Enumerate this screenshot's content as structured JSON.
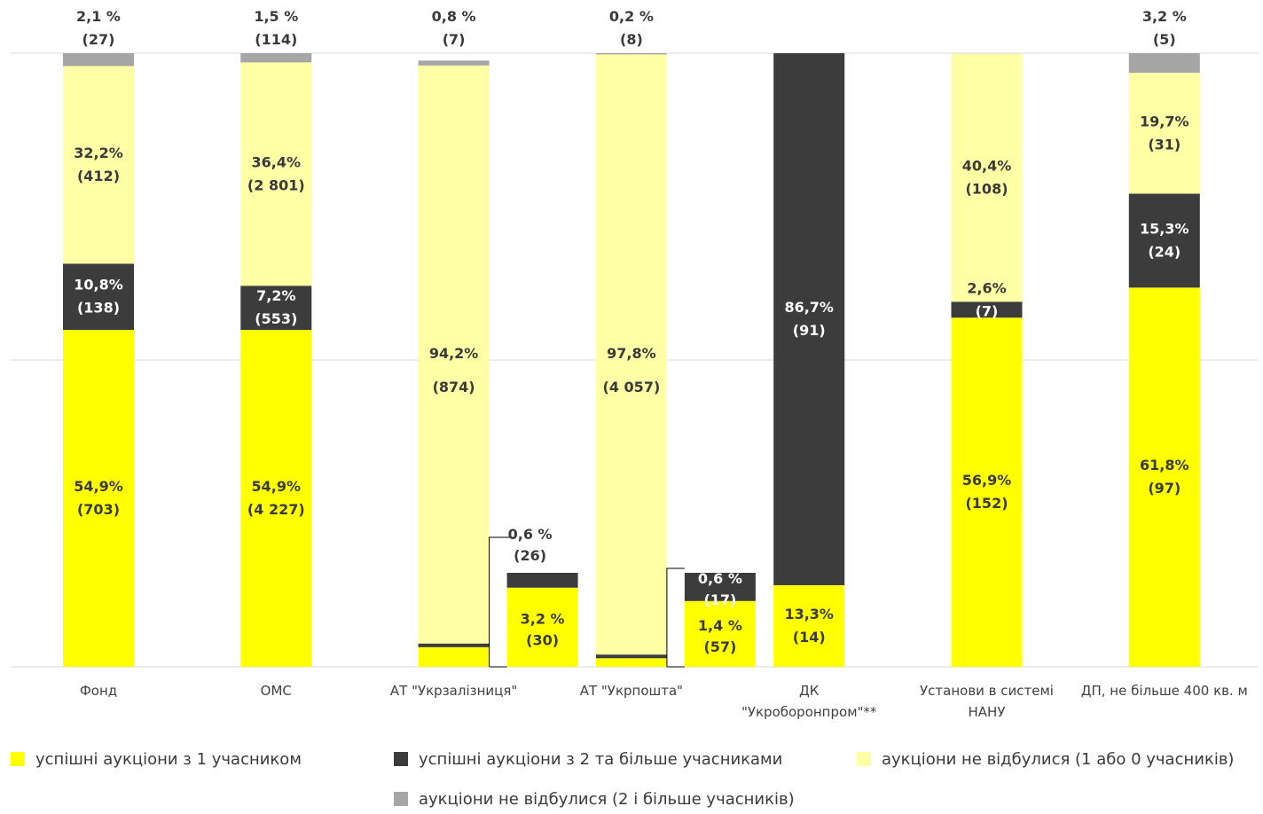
{
  "chart_data": {
    "type": "bar",
    "stacked": true,
    "ylim": [
      0,
      100
    ],
    "grid": true,
    "legend_position": "bottom",
    "categories": [
      "Фонд",
      "ОМС",
      "АТ \"Укрзалізниця\"",
      "АТ \"Укрпошта\"",
      "ДК \"Укроборонпром\"**",
      "Установи в системі НАНУ",
      "ДП, не більше 400 кв. м"
    ],
    "category_lines": [
      [
        "Фонд"
      ],
      [
        "ОМС"
      ],
      [
        "АТ \"Укрзалізниця\""
      ],
      [
        "АТ \"Укрпошта\""
      ],
      [
        "ДК",
        "\"Укроборонпром\"**"
      ],
      [
        "Установи в системі",
        "НАНУ"
      ],
      [
        "ДП, не більше 400 кв. м"
      ]
    ],
    "series": [
      {
        "name": "успішні аукціони з 1 учасником",
        "color": "#ffff00",
        "values": [
          54.9,
          54.9,
          3.2,
          1.4,
          13.3,
          56.9,
          61.8
        ],
        "labels": [
          [
            "54,9%",
            "(703)"
          ],
          [
            "54,9%",
            "(4 227)"
          ],
          [
            "3,2 %",
            "(30)"
          ],
          [
            "1,4 %",
            "(57)"
          ],
          [
            "13,3%",
            "(14)"
          ],
          [
            "56,9%",
            "(152)"
          ],
          [
            "61,8%",
            "(97)"
          ]
        ]
      },
      {
        "name": "успішні аукціони з 2 та більше учасниками",
        "color": "#3c3c3c",
        "values": [
          10.8,
          7.2,
          0.6,
          0.6,
          86.7,
          2.6,
          15.3
        ],
        "labels": [
          [
            "10,8%",
            "(138)"
          ],
          [
            "7,2%",
            "(553)"
          ],
          [
            "0,6 %",
            "(26)"
          ],
          [
            "0,6 %",
            "(17)"
          ],
          [
            "86,7%",
            "(91)"
          ],
          [
            "2,6%",
            "(7)"
          ],
          [
            "15,3%",
            "(24)"
          ]
        ]
      },
      {
        "name": "аукціони не відбулися (1 або 0 учасників)",
        "color": "#ffffa6",
        "values": [
          32.2,
          36.4,
          94.2,
          97.8,
          0,
          40.4,
          19.7
        ],
        "labels": [
          [
            "32,2%",
            "(412)"
          ],
          [
            "36,4%",
            "(2 801)"
          ],
          [
            "94,2%",
            "(874)"
          ],
          [
            "97,8%",
            "(4 057)"
          ],
          null,
          [
            "40,4%",
            "(108)"
          ],
          [
            "19,7%",
            "(31)"
          ]
        ]
      },
      {
        "name": "аукціони не відбулися (2 і більше учасників)",
        "color": "#a6a6a6",
        "values": [
          2.1,
          1.5,
          0.8,
          0.2,
          0,
          0,
          3.2
        ],
        "labels": [
          [
            "2,1 %",
            "(27)"
          ],
          [
            "1,5 %",
            "(114)"
          ],
          [
            "0,8 %",
            "(7)"
          ],
          [
            "0,2 %",
            "(8)"
          ],
          null,
          null,
          [
            "3,2 %",
            "(5)"
          ]
        ]
      }
    ]
  }
}
